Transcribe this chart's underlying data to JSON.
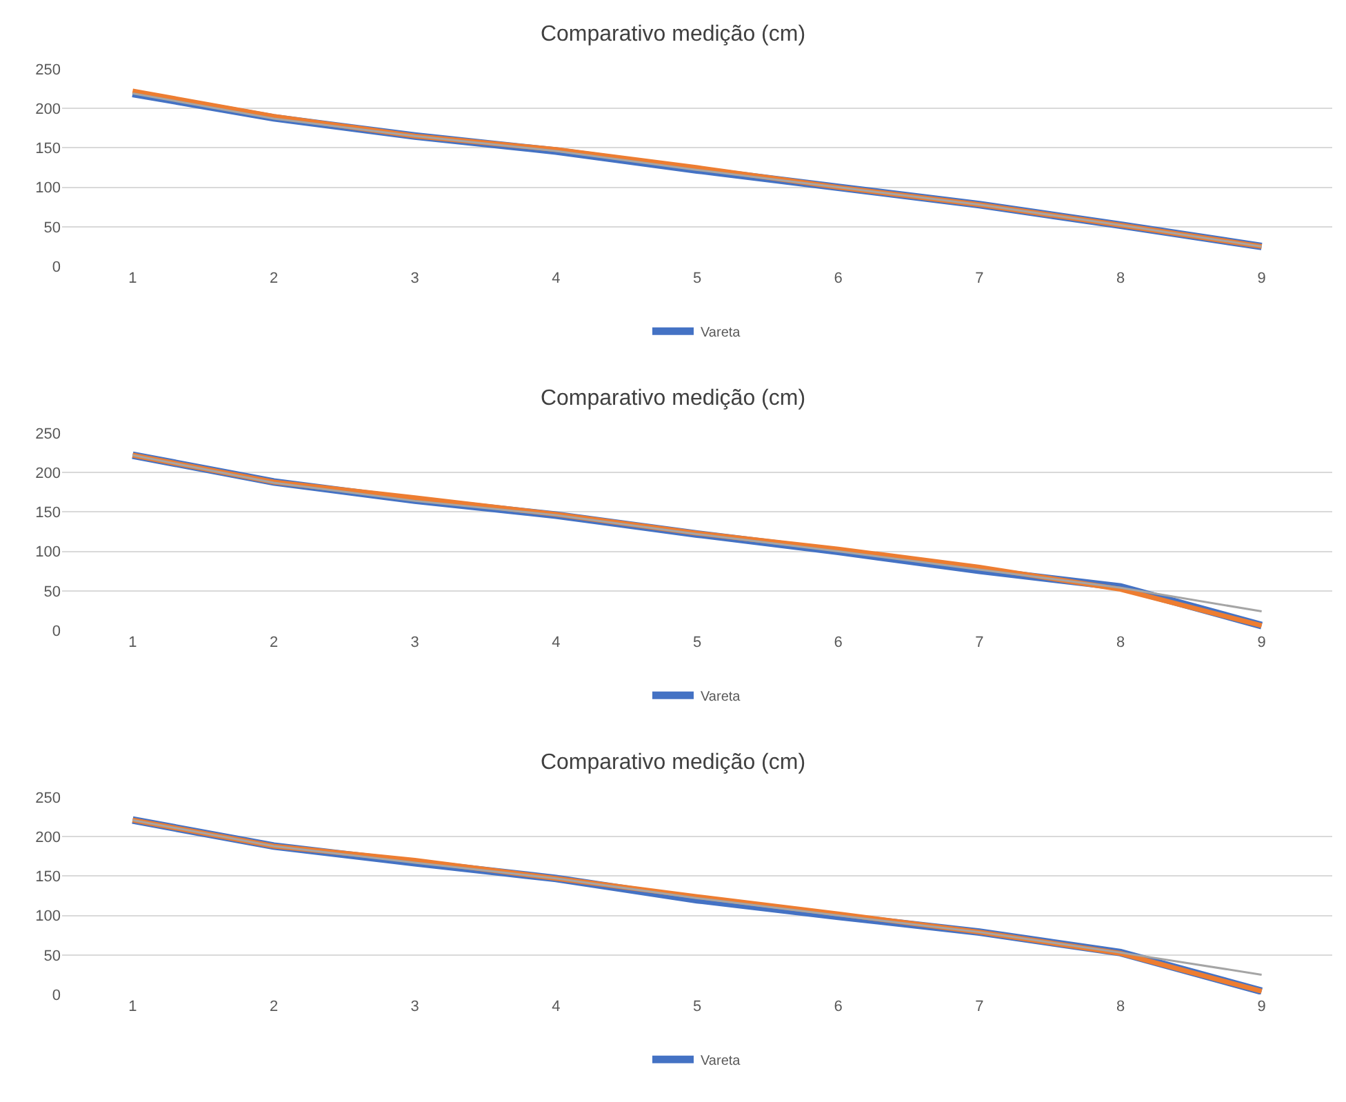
{
  "chart_data": [
    {
      "type": "line",
      "title": "Comparativo medição (cm)",
      "categories": [
        "1",
        "2",
        "3",
        "4",
        "5",
        "6",
        "7",
        "8",
        "9"
      ],
      "ylim": [
        0,
        250
      ],
      "yticks": [
        0,
        50,
        100,
        150,
        200,
        250
      ],
      "grid": "y",
      "legend": "bottom",
      "marker": "none",
      "series": [
        {
          "name": "Vareta",
          "color": "#4472c4",
          "values": [
            219,
            188,
            165,
            146,
            122,
            100,
            78,
            52,
            25
          ]
        },
        {
          "color": "#ed7d31",
          "values": [
            222,
            190,
            165,
            148,
            125,
            100,
            78,
            52,
            25
          ]
        },
        {
          "color": "#a5a5a5",
          "values": [
            219,
            187,
            165,
            146,
            122,
            100,
            78,
            52,
            25
          ]
        }
      ]
    },
    {
      "type": "line",
      "title": "Comparativo medição (cm)",
      "categories": [
        "1",
        "2",
        "3",
        "4",
        "5",
        "6",
        "7",
        "8",
        "9"
      ],
      "ylim": [
        0,
        250
      ],
      "yticks": [
        0,
        50,
        100,
        150,
        200,
        250
      ],
      "grid": "y",
      "legend": "bottom",
      "marker": "none",
      "series": [
        {
          "name": "Vareta",
          "color": "#4472c4",
          "values": [
            222,
            188,
            165,
            146,
            122,
            100,
            76,
            55,
            6
          ]
        },
        {
          "color": "#ed7d31",
          "values": [
            222,
            188,
            168,
            147,
            123,
            103,
            80,
            52,
            6
          ]
        },
        {
          "color": "#a5a5a5",
          "values": [
            222,
            187,
            164,
            146,
            122,
            100,
            77,
            54,
            24
          ]
        }
      ]
    },
    {
      "type": "line",
      "title": "Comparativo medição (cm)",
      "categories": [
        "1",
        "2",
        "3",
        "4",
        "5",
        "6",
        "7",
        "8",
        "9"
      ],
      "ylim": [
        0,
        250
      ],
      "yticks": [
        0,
        50,
        100,
        150,
        200,
        250
      ],
      "grid": "y",
      "legend": "bottom",
      "marker": "none",
      "series": [
        {
          "name": "Vareta",
          "color": "#4472c4",
          "values": [
            221,
            188,
            167,
            147,
            120,
            99,
            79,
            53,
            4
          ]
        },
        {
          "color": "#ed7d31",
          "values": [
            221,
            188,
            170,
            147,
            124,
            102,
            79,
            52,
            4
          ]
        },
        {
          "color": "#a5a5a5",
          "values": [
            221,
            188,
            167,
            147,
            122,
            100,
            79,
            53,
            25
          ]
        }
      ]
    }
  ]
}
